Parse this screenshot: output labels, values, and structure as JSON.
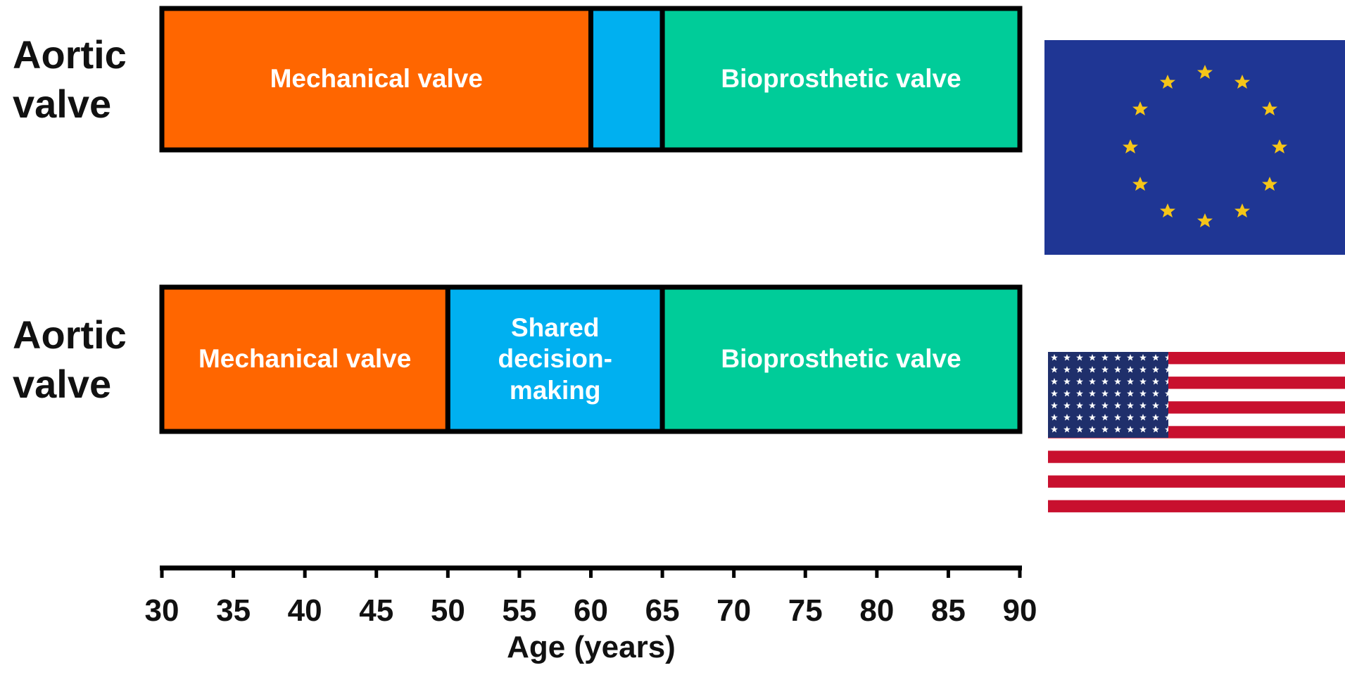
{
  "chart_data": {
    "type": "range-bar",
    "xlabel": "Age (years)",
    "xlim": [
      30,
      90
    ],
    "xticks": [
      30,
      35,
      40,
      45,
      50,
      55,
      60,
      65,
      70,
      75,
      80,
      85,
      90
    ],
    "rows": [
      {
        "label": "Aortic valve",
        "segments": [
          {
            "label": "Mechanical valve",
            "start": 30,
            "end": 60,
            "color": "#ff6600"
          },
          {
            "start": 60,
            "end": 65,
            "color": "#00b0f0"
          },
          {
            "label": "Bioprosthetic valve",
            "start": 65,
            "end": 90,
            "color": "#00cc99"
          }
        ]
      },
      {
        "label": "Aortic valve",
        "segments": [
          {
            "label": "Mechanical valve",
            "start": 30,
            "end": 50,
            "color": "#ff6600"
          },
          {
            "label": "Shared decision-making",
            "start": 50,
            "end": 65,
            "color": "#00b0f0"
          },
          {
            "label": "Bioprosthetic valve",
            "start": 65,
            "end": 90,
            "color": "#00cc99"
          }
        ]
      }
    ]
  }
}
